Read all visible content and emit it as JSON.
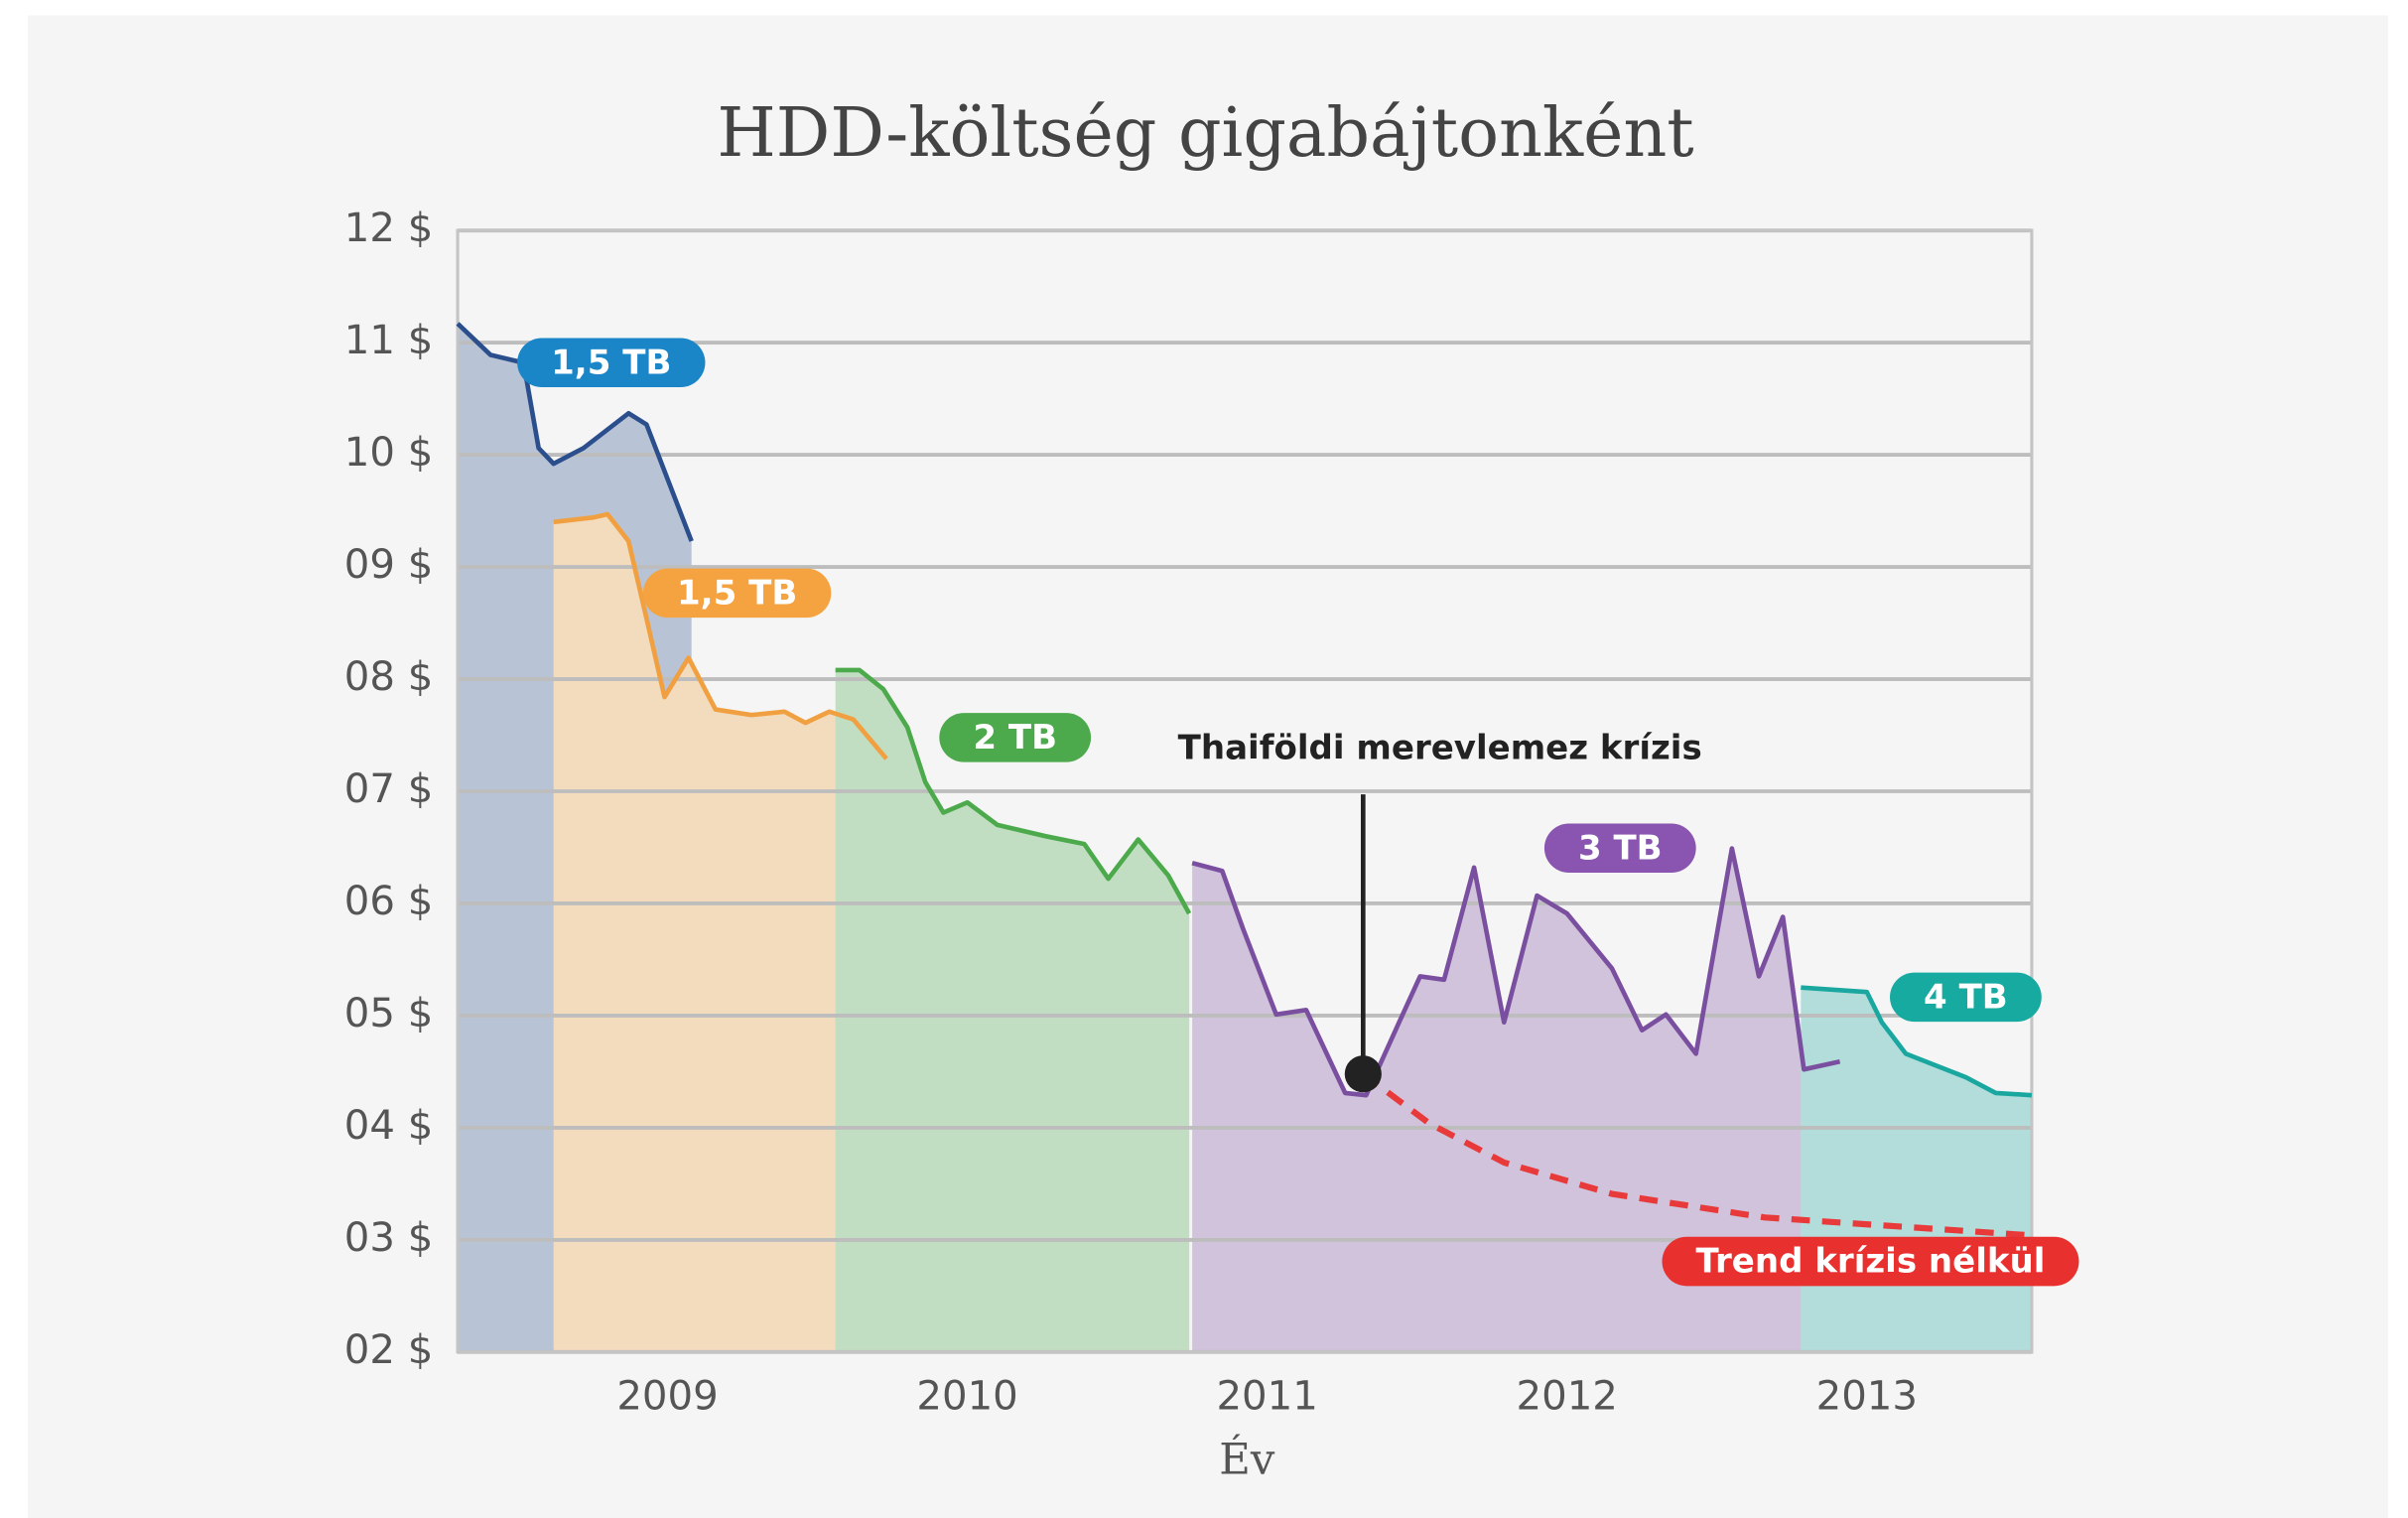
{
  "chart_data": {
    "type": "line",
    "title": "HDD-költség gigabájtonként",
    "x_label": "Év",
    "xlim": [
      2008.3,
      2013.55
    ],
    "xticks": [
      2009,
      2010,
      2011,
      2012,
      2013
    ],
    "ylim": [
      2,
      12
    ],
    "yticks": [
      {
        "value": 12,
        "label": "12 $"
      },
      {
        "value": 11,
        "label": "11 $"
      },
      {
        "value": 10,
        "label": "10 $"
      },
      {
        "value": 9,
        "label": "09 $"
      },
      {
        "value": 8,
        "label": "08 $"
      },
      {
        "value": 7,
        "label": "07 $"
      },
      {
        "value": 6,
        "label": "06 $"
      },
      {
        "value": 5,
        "label": "05 $"
      },
      {
        "value": 4,
        "label": "04 $"
      },
      {
        "value": 3,
        "label": "03 $"
      },
      {
        "value": 2,
        "label": "02 $"
      }
    ],
    "grid": true,
    "series": [
      {
        "name": "1,5 TB",
        "color": "#2b4e8c",
        "badge_color": "#1a86c8",
        "area": true,
        "x": [
          2008.3,
          2008.41,
          2008.52,
          2008.57,
          2008.62,
          2008.72,
          2008.87,
          2008.93,
          2009.08
        ],
        "values": [
          11.17,
          10.89,
          10.82,
          10.06,
          9.92,
          10.06,
          10.37,
          10.27,
          9.23
        ]
      },
      {
        "name": "1,5 TB",
        "color": "#f0a040",
        "badge_color": "#f4a340",
        "area": true,
        "x": [
          2008.62,
          2008.75,
          2008.8,
          2008.87,
          2008.93,
          2008.99,
          2009.07,
          2009.16,
          2009.28,
          2009.39,
          2009.46,
          2009.54,
          2009.62,
          2009.73
        ],
        "values": [
          9.4,
          9.44,
          9.47,
          9.23,
          8.54,
          7.84,
          8.19,
          7.73,
          7.68,
          7.71,
          7.61,
          7.71,
          7.64,
          7.29
        ]
      },
      {
        "name": "2 TB",
        "color": "#4caa4c",
        "badge_color": "#4caa4c",
        "area": true,
        "x": [
          2009.56,
          2009.64,
          2009.72,
          2009.8,
          2009.86,
          2009.92,
          2010.0,
          2010.1,
          2010.26,
          2010.39,
          2010.47,
          2010.57,
          2010.67,
          2010.74
        ],
        "values": [
          8.08,
          8.08,
          7.91,
          7.57,
          7.08,
          6.81,
          6.9,
          6.7,
          6.6,
          6.53,
          6.22,
          6.57,
          6.25,
          5.91
        ]
      },
      {
        "name": "3 TB",
        "color": "#7a4fa0",
        "badge_color": "#8a55b0",
        "area": true,
        "x": [
          2010.75,
          2010.85,
          2010.92,
          2011.03,
          2011.13,
          2011.26,
          2011.33,
          2011.44,
          2011.51,
          2011.59,
          2011.69,
          2011.79,
          2011.9,
          2012.0,
          2012.15,
          2012.25,
          2012.33,
          2012.43,
          2012.55,
          2012.64,
          2012.72,
          2012.79,
          2012.91
        ],
        "values": [
          6.36,
          6.29,
          5.77,
          5.01,
          5.05,
          4.31,
          4.29,
          4.94,
          5.35,
          5.32,
          6.32,
          4.94,
          6.07,
          5.91,
          5.42,
          4.87,
          5.01,
          4.66,
          6.49,
          5.35,
          5.88,
          4.52,
          4.59
        ]
      },
      {
        "name": "4 TB",
        "color": "#1aa7a0",
        "badge_color": "#16aaa0",
        "area": true,
        "x": [
          2012.78,
          2013.0,
          2013.05,
          2013.13,
          2013.33,
          2013.43,
          2013.55
        ],
        "values": [
          5.25,
          5.21,
          4.94,
          4.66,
          4.45,
          4.31,
          4.29
        ]
      },
      {
        "name": "Trend krízis nélkül",
        "color": "#e83a3a",
        "badge_color": "#e8302f",
        "area": false,
        "dashed": true,
        "x": [
          2011.32,
          2011.54,
          2011.79,
          2012.15,
          2012.66,
          2013.55
        ],
        "values": [
          4.48,
          4.04,
          3.69,
          3.41,
          3.2,
          3.04
        ]
      }
    ],
    "annotations": [
      {
        "text": "Thaiföldi merevlemez krízis",
        "x": 2011.32,
        "y": 4.48
      }
    ]
  }
}
